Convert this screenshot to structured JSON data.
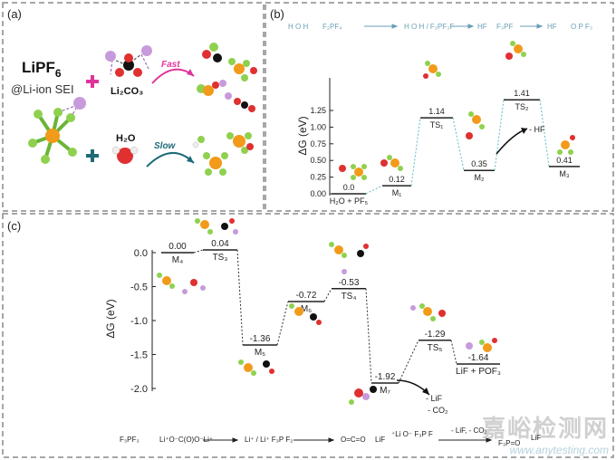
{
  "panels": {
    "a": {
      "label": "(a)",
      "title_main": "LiPF",
      "title_sub": "6",
      "subtitle": "@Li-ion SEI",
      "reagent_1": "Li₂CO₃",
      "reagent_2": "H₂O",
      "arrow_1": "Fast",
      "arrow_2": "Slow",
      "colors": {
        "fast": "#e0349a",
        "slow": "#1f6b78",
        "plus_1": "#e0349a",
        "plus_2": "#1f6b78"
      }
    },
    "b": {
      "label": "(b)",
      "top_species": [
        "H O H",
        "F₂PF₄",
        "H O H / F₂PF₃F",
        "HF",
        "F₃PF",
        "HF",
        "O P F₃"
      ],
      "side_note": "- HF"
    },
    "c": {
      "label": "(c)",
      "side_note_1": "- LiF",
      "side_note_2": "- CO₂",
      "scheme": [
        "F₃PF₃",
        "Li⁺O⁻C(O)O⁻Li⁺",
        "→",
        "Li⁺ / Li⁺ F₃P F₂",
        "→",
        "O=C=O",
        "LiF",
        "⁺Li O⁻ F₃P F",
        "- LiF, - CO₂",
        "F₃P=O",
        "LiF"
      ]
    }
  },
  "chart_data": [
    {
      "type": "energy-profile",
      "panel": "b",
      "ylabel": "ΔG (eV)",
      "ylim": [
        0,
        1.4
      ],
      "yticks": [
        "0.00",
        "0.25",
        "0.50",
        "0.75",
        "1.00",
        "1.25"
      ],
      "states": [
        {
          "name": "H₂O + PF₅",
          "value": 0.0,
          "value_label": "0.0"
        },
        {
          "name": "M₁",
          "value": 0.12,
          "value_label": "0.12"
        },
        {
          "name": "TS₁",
          "value": 1.14,
          "value_label": "1.14"
        },
        {
          "name": "M₂",
          "value": 0.35,
          "value_label": "0.35"
        },
        {
          "name": "TS₂",
          "value": 1.41,
          "value_label": "1.41"
        },
        {
          "name": "M₃",
          "value": 0.41,
          "value_label": "0.41"
        }
      ],
      "colors": {
        "levels": "#222222",
        "connectors": "#5bbcc2"
      }
    },
    {
      "type": "energy-profile",
      "panel": "c",
      "ylabel": "ΔG (eV)",
      "ylim": [
        -2.0,
        0.0
      ],
      "yticks": [
        "0.0",
        "-0.5",
        "-1.0",
        "-1.5",
        "-2.0"
      ],
      "states": [
        {
          "name": "M₄",
          "value": 0.0,
          "value_label": "0.00"
        },
        {
          "name": "TS₃",
          "value": 0.04,
          "value_label": "0.04"
        },
        {
          "name": "M₅",
          "value": -1.36,
          "value_label": "-1.36"
        },
        {
          "name": "M₆",
          "value": -0.72,
          "value_label": "-0.72"
        },
        {
          "name": "TS₄",
          "value": -0.53,
          "value_label": "-0.53"
        },
        {
          "name": "M₇",
          "value": -1.92,
          "value_label": "-1.92"
        },
        {
          "name": "TS₅",
          "value": -1.29,
          "value_label": "-1.29"
        },
        {
          "name": "LiF + POF₃",
          "value": -1.64,
          "value_label": "-1.64"
        }
      ],
      "colors": {
        "levels": "#222222",
        "connectors": "#333333"
      }
    }
  ],
  "watermark": {
    "cn": "嘉峪检测网",
    "url": "www.anytesting.com"
  }
}
